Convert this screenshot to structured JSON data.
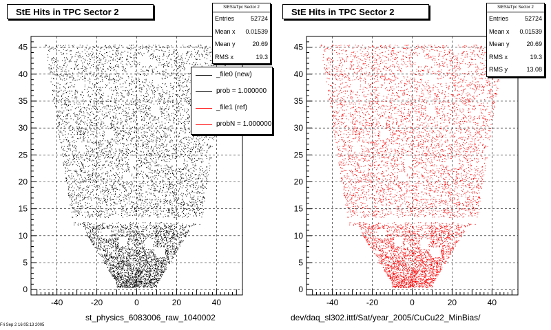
{
  "colors": {
    "new": "#000000",
    "ref": "#ff0000",
    "grid": "#000000"
  },
  "corner_text": "Fri Sep  2 16:05:13 2005",
  "chart_data": [
    {
      "type": "scatter",
      "title": "StE Hits in TPC Sector 2",
      "xlabel": "st_physics_6083006_raw_1040002",
      "ylabel": "",
      "xlim": [
        -53,
        53
      ],
      "ylim": [
        -1,
        47
      ],
      "xticks": [
        -40,
        -20,
        0,
        20,
        40
      ],
      "yticks": [
        0,
        5,
        10,
        15,
        20,
        25,
        30,
        35,
        40,
        45
      ],
      "grid": true,
      "marker_color": "#000000",
      "stats": {
        "header": "StEStaTpc Sector 2",
        "rows": [
          {
            "label": "Entries",
            "value": "52724"
          },
          {
            "label": "Mean x",
            "value": "0.01539"
          },
          {
            "label": "Mean y",
            "value": "20.69"
          },
          {
            "label": "RMS x",
            "value": "19.3"
          }
        ]
      },
      "legend": {
        "placement": "top-right",
        "entries": [
          {
            "label": "_file0 (new)",
            "color": "#000000"
          },
          {
            "label": "prob = 1.000000",
            "color": "#000000"
          },
          {
            "label": "_file1 (ref)",
            "color": "#ff0000"
          },
          {
            "label": "probN = 1.000000",
            "color": "#ff0000"
          }
        ]
      },
      "hit_region": {
        "rows": [
          1,
          45
        ],
        "rows_missing": [
          13
        ],
        "halfwidth_x_at_row": {
          "row1": 10,
          "row12": 28,
          "row14": 33,
          "row45": 46
        },
        "entries": 52724
      }
    },
    {
      "type": "scatter",
      "title": "StE Hits in TPC Sector 2",
      "xlabel": "dev/daq_sl302.ittf/Sat/year_2005/CuCu22_MinBias/",
      "ylabel": "",
      "xlim": [
        -53,
        53
      ],
      "ylim": [
        -1,
        47
      ],
      "xticks": [
        -40,
        -20,
        0,
        20,
        40
      ],
      "yticks": [
        0,
        5,
        10,
        15,
        20,
        25,
        30,
        35,
        40,
        45
      ],
      "grid": true,
      "marker_color": "#ff0000",
      "stats": {
        "header": "StEStaTpc Sector 2",
        "rows": [
          {
            "label": "Entries",
            "value": "52724"
          },
          {
            "label": "Mean x",
            "value": "0.01539"
          },
          {
            "label": "Mean y",
            "value": "20.69"
          },
          {
            "label": "RMS x",
            "value": "19.3"
          },
          {
            "label": "RMS y",
            "value": "13.08"
          }
        ]
      },
      "hit_region": {
        "rows": [
          1,
          45
        ],
        "rows_missing": [
          13
        ],
        "halfwidth_x_at_row": {
          "row1": 10,
          "row12": 28,
          "row14": 33,
          "row45": 46
        },
        "entries": 52724
      }
    }
  ]
}
